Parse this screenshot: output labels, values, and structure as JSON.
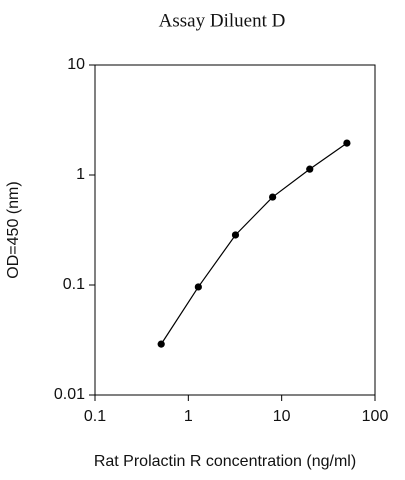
{
  "chart_data": {
    "type": "line",
    "title": "Assay Diluent D",
    "xlabel": "Rat Prolactin R concentration (ng/ml)",
    "ylabel": "OD=450 (nm)",
    "x": [
      0.512,
      1.28,
      3.2,
      8,
      20,
      50
    ],
    "series": [
      {
        "color": "#000000",
        "values": [
          0.029,
          0.096,
          0.285,
          0.63,
          1.13,
          1.95
        ]
      }
    ],
    "xlim": [
      0.1,
      100
    ],
    "xticks": [
      0.1,
      1,
      10,
      100
    ],
    "xscale": "log",
    "ylim": [
      0.01,
      10
    ],
    "yticks": [
      0.01,
      0.1,
      1,
      10
    ],
    "yscale": "log",
    "grid": false
  }
}
